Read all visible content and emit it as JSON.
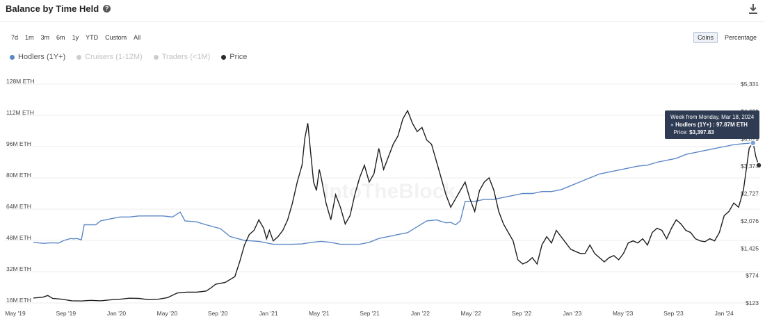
{
  "header": {
    "title": "Balance by Time Held",
    "help_icon": "question-circle-icon",
    "download_icon": "download-icon"
  },
  "ranges": [
    "7d",
    "1m",
    "3m",
    "6m",
    "1y",
    "YTD",
    "Custom",
    "All"
  ],
  "units": {
    "options": [
      "Coins",
      "Percentage"
    ],
    "selected": "Coins"
  },
  "legend": [
    {
      "label": "Hodlers (1Y+)",
      "color": "#5b87c7",
      "active": true
    },
    {
      "label": "Cruisers (1-12M)",
      "color": "#c8c8c8",
      "active": false
    },
    {
      "label": "Traders (<1M)",
      "color": "#c8c8c8",
      "active": false
    },
    {
      "label": "Price",
      "color": "#2b2b2b",
      "active": true
    }
  ],
  "watermark": "IntoTheBlock",
  "tooltip": {
    "week": "Week from Monday, Mar 18, 2024",
    "hodlers_line": "Hodlers (1Y+) : 97.87M ETH",
    "price_label": "Price:",
    "price_value": "$3,397.83"
  },
  "chart_data": {
    "type": "line",
    "x_labels": [
      "May '19",
      "Sep '19",
      "Jan '20",
      "May '20",
      "Sep '20",
      "Jan '21",
      "May '21",
      "Sep '21",
      "Jan '22",
      "May '22",
      "Sep '22",
      "Jan '23",
      "May '23",
      "Sep '23",
      "Jan '24"
    ],
    "y_left_ticks": [
      "16M ETH",
      "32M ETH",
      "48M ETH",
      "64M ETH",
      "80M ETH",
      "96M ETH",
      "112M ETH",
      "128M ETH"
    ],
    "y_left_range": [
      16,
      128
    ],
    "y_right_ticks": [
      "$123",
      "$774",
      "$1,425",
      "$2,076",
      "$2,727",
      "$3,378",
      "$4,029",
      "$4,680",
      "$5,331"
    ],
    "y_right_range": [
      123,
      5331
    ],
    "series": [
      {
        "name": "Hodlers (1Y+)",
        "axis": "left",
        "color": "#5b87c7",
        "points": [
          [
            0,
            47
          ],
          [
            1,
            46.5
          ],
          [
            2,
            46.8
          ],
          [
            2.6,
            46.6
          ],
          [
            3.2,
            48
          ],
          [
            3.9,
            49
          ],
          [
            4.2,
            48.8
          ],
          [
            4.5,
            49
          ],
          [
            5.0,
            48.3
          ],
          [
            5.3,
            56
          ],
          [
            6,
            56
          ],
          [
            6.5,
            56
          ],
          [
            7,
            58
          ],
          [
            8,
            59
          ],
          [
            9,
            60
          ],
          [
            10,
            60
          ],
          [
            11,
            60.5
          ],
          [
            12,
            60.5
          ],
          [
            13.5,
            60.5
          ],
          [
            14.5,
            60
          ],
          [
            15.3,
            62.5
          ],
          [
            15.8,
            58
          ],
          [
            17,
            57.5
          ],
          [
            18,
            56
          ],
          [
            19.5,
            54
          ],
          [
            20.5,
            50
          ],
          [
            22,
            48
          ],
          [
            23.5,
            47.5
          ],
          [
            25,
            46
          ],
          [
            26,
            46
          ],
          [
            27,
            46
          ],
          [
            28,
            46.2
          ],
          [
            29,
            47
          ],
          [
            30,
            47.5
          ],
          [
            31,
            47
          ],
          [
            32,
            46
          ],
          [
            33,
            46
          ],
          [
            34,
            46
          ],
          [
            35,
            47
          ],
          [
            36,
            49
          ],
          [
            37,
            50
          ],
          [
            38,
            51
          ],
          [
            39,
            52
          ],
          [
            40,
            55
          ],
          [
            41,
            58
          ],
          [
            42,
            58.5
          ],
          [
            43,
            57
          ],
          [
            43.5,
            57.2
          ],
          [
            44,
            56
          ],
          [
            44.5,
            58
          ],
          [
            45,
            68
          ],
          [
            46,
            68
          ],
          [
            47,
            69
          ],
          [
            48,
            69
          ],
          [
            49,
            70
          ],
          [
            50,
            71
          ],
          [
            51,
            72
          ],
          [
            52,
            72
          ],
          [
            53,
            73
          ],
          [
            54,
            73
          ],
          [
            55,
            74
          ],
          [
            56,
            76
          ],
          [
            57,
            78
          ],
          [
            58,
            80
          ],
          [
            59,
            82
          ],
          [
            60,
            83
          ],
          [
            61,
            84
          ],
          [
            62,
            85
          ],
          [
            63,
            86
          ],
          [
            64,
            86.5
          ],
          [
            65,
            88
          ],
          [
            66,
            89
          ],
          [
            67,
            90
          ],
          [
            68,
            92
          ],
          [
            69,
            93
          ],
          [
            70,
            94
          ],
          [
            71,
            95
          ],
          [
            72,
            96
          ],
          [
            73,
            97
          ],
          [
            74,
            97.5
          ],
          [
            75,
            97.87
          ]
        ]
      },
      {
        "name": "Price",
        "axis": "right",
        "color": "#1e1e1e",
        "points": [
          [
            0,
            240
          ],
          [
            1,
            260
          ],
          [
            1.5,
            300
          ],
          [
            2,
            230
          ],
          [
            3,
            210
          ],
          [
            4,
            175
          ],
          [
            5,
            170
          ],
          [
            6,
            185
          ],
          [
            7,
            175
          ],
          [
            8,
            195
          ],
          [
            9,
            210
          ],
          [
            10,
            235
          ],
          [
            11,
            230
          ],
          [
            12,
            200
          ],
          [
            13,
            210
          ],
          [
            14,
            250
          ],
          [
            15,
            360
          ],
          [
            16,
            380
          ],
          [
            17,
            380
          ],
          [
            18,
            405
          ],
          [
            18.5,
            480
          ],
          [
            19,
            570
          ],
          [
            20,
            610
          ],
          [
            21,
            750
          ],
          [
            21.5,
            1100
          ],
          [
            22,
            1500
          ],
          [
            22.5,
            1750
          ],
          [
            23,
            1850
          ],
          [
            23.5,
            2100
          ],
          [
            24,
            1900
          ],
          [
            24.3,
            1650
          ],
          [
            24.6,
            1850
          ],
          [
            25,
            1600
          ],
          [
            25.5,
            1700
          ],
          [
            26,
            1850
          ],
          [
            26.5,
            2100
          ],
          [
            27,
            2500
          ],
          [
            27.5,
            3000
          ],
          [
            28,
            3400
          ],
          [
            28.3,
            4050
          ],
          [
            28.6,
            4400
          ],
          [
            28.9,
            3700
          ],
          [
            29.2,
            3000
          ],
          [
            29.5,
            2800
          ],
          [
            29.8,
            3300
          ],
          [
            30,
            3100
          ],
          [
            30.5,
            2500
          ],
          [
            31,
            2100
          ],
          [
            31.5,
            2700
          ],
          [
            32,
            2400
          ],
          [
            32.5,
            2000
          ],
          [
            33,
            2200
          ],
          [
            33.5,
            2700
          ],
          [
            34,
            3100
          ],
          [
            34.5,
            3400
          ],
          [
            35,
            3000
          ],
          [
            35.5,
            3200
          ],
          [
            36,
            3800
          ],
          [
            36.5,
            3300
          ],
          [
            37,
            3600
          ],
          [
            37.5,
            3900
          ],
          [
            38,
            4100
          ],
          [
            38.5,
            4500
          ],
          [
            39,
            4700
          ],
          [
            39.5,
            4400
          ],
          [
            40,
            4200
          ],
          [
            40.5,
            4300
          ],
          [
            41,
            4000
          ],
          [
            41.5,
            3900
          ],
          [
            42,
            3500
          ],
          [
            42.5,
            3100
          ],
          [
            43,
            2700
          ],
          [
            43.5,
            2400
          ],
          [
            44,
            2600
          ],
          [
            44.5,
            2800
          ],
          [
            45,
            3000
          ],
          [
            45.5,
            2600
          ],
          [
            46,
            2300
          ],
          [
            46.5,
            2800
          ],
          [
            47,
            3000
          ],
          [
            47.5,
            3100
          ],
          [
            48,
            2800
          ],
          [
            48.5,
            2300
          ],
          [
            49,
            2000
          ],
          [
            49.5,
            1800
          ],
          [
            50,
            1600
          ],
          [
            50.5,
            1150
          ],
          [
            51,
            1050
          ],
          [
            51.5,
            1100
          ],
          [
            52,
            1200
          ],
          [
            52.5,
            1050
          ],
          [
            53,
            1500
          ],
          [
            53.5,
            1700
          ],
          [
            54,
            1550
          ],
          [
            54.5,
            1850
          ],
          [
            55,
            1700
          ],
          [
            55.5,
            1550
          ],
          [
            56,
            1400
          ],
          [
            56.5,
            1350
          ],
          [
            57,
            1300
          ],
          [
            57.5,
            1300
          ],
          [
            58,
            1500
          ],
          [
            58.5,
            1300
          ],
          [
            59,
            1200
          ],
          [
            59.5,
            1100
          ],
          [
            60,
            1200
          ],
          [
            60.5,
            1250
          ],
          [
            61,
            1150
          ],
          [
            61.5,
            1300
          ],
          [
            62,
            1550
          ],
          [
            62.5,
            1600
          ],
          [
            63,
            1550
          ],
          [
            63.5,
            1650
          ],
          [
            64,
            1500
          ],
          [
            64.5,
            1800
          ],
          [
            65,
            1900
          ],
          [
            65.5,
            1850
          ],
          [
            66,
            1650
          ],
          [
            66.5,
            1900
          ],
          [
            67,
            2100
          ],
          [
            67.5,
            2000
          ],
          [
            68,
            1850
          ],
          [
            68.5,
            1800
          ],
          [
            69,
            1650
          ],
          [
            69.5,
            1600
          ],
          [
            70,
            1580
          ],
          [
            70.5,
            1650
          ],
          [
            71,
            1600
          ],
          [
            71.5,
            1800
          ],
          [
            72,
            2200
          ],
          [
            72.5,
            2300
          ],
          [
            73,
            2500
          ],
          [
            73.5,
            2400
          ],
          [
            74,
            2800
          ],
          [
            74.3,
            3300
          ],
          [
            74.6,
            3800
          ],
          [
            75,
            3950
          ],
          [
            75.3,
            3600
          ],
          [
            75.6,
            3397.83
          ]
        ]
      }
    ],
    "tooltip_date": "Mar 18, 2024",
    "grid": "horizontal",
    "legend_position": "top-left"
  }
}
